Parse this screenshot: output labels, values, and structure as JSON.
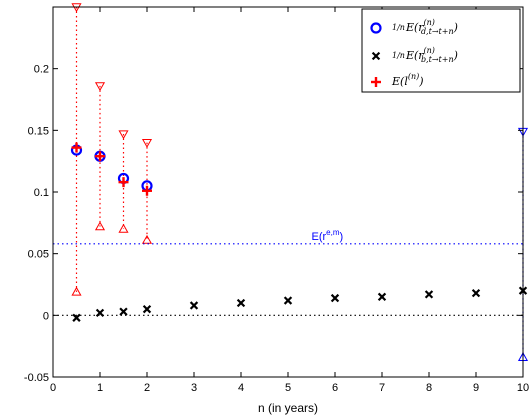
{
  "chart_data": {
    "type": "scatter",
    "xlabel": "n (in years)",
    "ylabel": "",
    "xlim": [
      0,
      10
    ],
    "ylim": [
      -0.05,
      0.25
    ],
    "x_ticks": [
      "0",
      "1",
      "2",
      "3",
      "4",
      "5",
      "6",
      "7",
      "8",
      "9",
      "10"
    ],
    "y_ticks": [
      "-0.05",
      "0",
      "0.05",
      "0.1",
      "0.15",
      "0.2"
    ],
    "legend_position": "top-right",
    "series": [
      {
        "name": "1/n E(r^(n)_{d,t→t+n})",
        "marker": "circle",
        "color": "#0000ff",
        "points": [
          {
            "x": 0.5,
            "y": 0.134
          },
          {
            "x": 1.0,
            "y": 0.129
          },
          {
            "x": 1.5,
            "y": 0.111
          },
          {
            "x": 2.0,
            "y": 0.105
          }
        ]
      },
      {
        "name": "1/n E(r^(n)_{b,t→t+n})",
        "marker": "x",
        "color": "#000000",
        "points": [
          {
            "x": 0.5,
            "y": -0.002
          },
          {
            "x": 1,
            "y": 0.002
          },
          {
            "x": 1.5,
            "y": 0.003
          },
          {
            "x": 2,
            "y": 0.005
          },
          {
            "x": 3,
            "y": 0.008
          },
          {
            "x": 4,
            "y": 0.01
          },
          {
            "x": 5,
            "y": 0.012
          },
          {
            "x": 6,
            "y": 0.014
          },
          {
            "x": 7,
            "y": 0.015
          },
          {
            "x": 8,
            "y": 0.017
          },
          {
            "x": 9,
            "y": 0.018
          },
          {
            "x": 10,
            "y": 0.02
          }
        ]
      },
      {
        "name": "E(l^(n))",
        "marker": "plus",
        "color": "#ff0000",
        "points": [
          {
            "x": 0.5,
            "y": 0.136
          },
          {
            "x": 1.0,
            "y": 0.129
          },
          {
            "x": 1.5,
            "y": 0.108
          },
          {
            "x": 2.0,
            "y": 0.101
          }
        ]
      }
    ],
    "bands": [
      {
        "x": 0.5,
        "lower": 0.019,
        "upper": 0.25,
        "color": "#ff0000"
      },
      {
        "x": 1.0,
        "lower": 0.072,
        "upper": 0.186,
        "color": "#ff0000"
      },
      {
        "x": 1.5,
        "lower": 0.07,
        "upper": 0.147,
        "color": "#ff0000"
      },
      {
        "x": 2.0,
        "lower": 0.061,
        "upper": 0.14,
        "color": "#ff0000"
      },
      {
        "x": 10,
        "lower": -0.034,
        "upper": 0.149,
        "color": "#0000ff"
      }
    ],
    "reference_lines": [
      {
        "y": 0.058,
        "label": "E(r^{e,m})",
        "color": "#0000ff"
      },
      {
        "y": 0,
        "label": "",
        "color": "#000000"
      }
    ],
    "legend": [
      {
        "marker": "circle",
        "color": "#0000ff",
        "text": "E(r",
        "sup": "(n)",
        "sub": "d,t→t+n",
        "frac": "1/n"
      },
      {
        "marker": "x",
        "color": "#000000",
        "text": "E(r",
        "sup": "(n)",
        "sub": "b,t→t+n",
        "frac": "1/n"
      },
      {
        "marker": "plus",
        "color": "#ff0000",
        "text": "E(l",
        "sup": "(n)",
        "sub": "",
        "frac": ""
      }
    ],
    "ref_label_main": "E(r",
    "ref_label_sup": "e,m",
    "ref_label_close": ")"
  }
}
